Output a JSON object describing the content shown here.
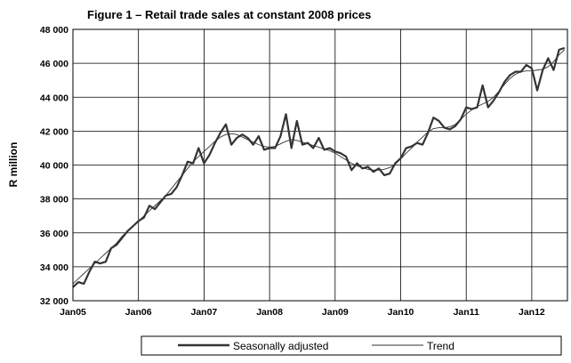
{
  "chart_data": {
    "type": "line",
    "title": "Figure 1 – Retail trade sales at constant 2008 prices",
    "xlabel": "",
    "ylabel": "R million",
    "ylim": [
      32000,
      48000
    ],
    "yticks": [
      32000,
      34000,
      36000,
      38000,
      40000,
      42000,
      44000,
      46000,
      48000
    ],
    "ytick_labels": [
      "32 000",
      "34 000",
      "36 000",
      "38 000",
      "40 000",
      "42 000",
      "44 000",
      "46 000",
      "48 000"
    ],
    "xticks": [
      "Jan05",
      "Jan06",
      "Jan07",
      "Jan08",
      "Jan09",
      "Jan10",
      "Jan11",
      "Jan12"
    ],
    "grid": true,
    "legend_position": "bottom",
    "series": [
      {
        "name": "Seasonally adjusted",
        "style": "thick",
        "start": "2005-01",
        "values": [
          32800,
          33100,
          33000,
          33700,
          34300,
          34200,
          34300,
          35100,
          35300,
          35700,
          36100,
          36400,
          36700,
          36900,
          37600,
          37400,
          37800,
          38200,
          38300,
          38700,
          39400,
          40200,
          40100,
          41000,
          40100,
          40600,
          41300,
          41900,
          42400,
          41200,
          41600,
          41800,
          41600,
          41200,
          41700,
          40900,
          41000,
          41000,
          41700,
          43000,
          41000,
          42600,
          41200,
          41300,
          41000,
          41600,
          40900,
          41000,
          40800,
          40700,
          40500,
          39700,
          40100,
          39800,
          39900,
          39600,
          39800,
          39400,
          39500,
          40100,
          40400,
          41000,
          41100,
          41300,
          41200,
          41900,
          42800,
          42600,
          42200,
          42100,
          42300,
          42700,
          43400,
          43300,
          43400,
          44700,
          43400,
          43800,
          44300,
          44900,
          45300,
          45500,
          45500,
          45900,
          45700,
          44400,
          45600,
          46300,
          45600,
          46800,
          46900
        ]
      },
      {
        "name": "Trend",
        "style": "thin",
        "start": "2005-01",
        "values": [
          33000,
          33300,
          33600,
          33900,
          34200,
          34500,
          34800,
          35100,
          35400,
          35800,
          36100,
          36400,
          36700,
          37000,
          37300,
          37600,
          37900,
          38200,
          38600,
          39000,
          39400,
          39800,
          40200,
          40500,
          40800,
          41100,
          41400,
          41650,
          41800,
          41850,
          41800,
          41650,
          41500,
          41350,
          41200,
          41100,
          41050,
          41100,
          41250,
          41400,
          41500,
          41450,
          41350,
          41250,
          41150,
          41050,
          40950,
          40850,
          40700,
          40500,
          40300,
          40100,
          39950,
          39850,
          39750,
          39700,
          39700,
          39750,
          39850,
          40050,
          40350,
          40700,
          41000,
          41350,
          41650,
          41950,
          42150,
          42200,
          42200,
          42250,
          42400,
          42700,
          43000,
          43250,
          43450,
          43600,
          43750,
          44000,
          44350,
          44750,
          45100,
          45350,
          45500,
          45550,
          45550,
          45600,
          45650,
          45800,
          46100,
          46500,
          46800
        ]
      }
    ]
  }
}
